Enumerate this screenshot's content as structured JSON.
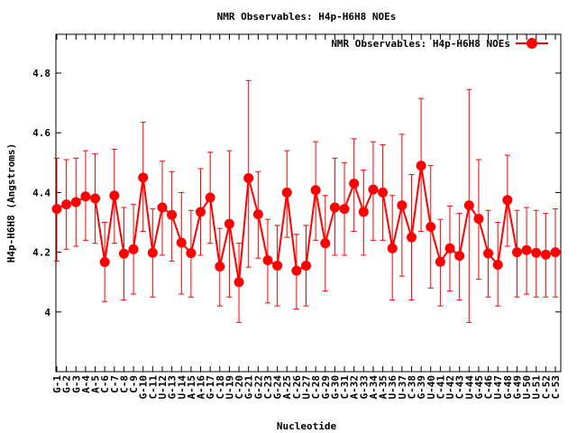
{
  "chart_data": {
    "type": "line",
    "title": "NMR Observables: H4p-H6H8 NOEs",
    "xlabel": "Nucleotide",
    "ylabel": "H4p-H6H8 (Angstroms)",
    "ylim": [
      3.8,
      4.93
    ],
    "yticks": [
      "4",
      "4.2",
      "4.4",
      "4.6",
      "4.8"
    ],
    "grid": false,
    "legend_position": "top-right",
    "series": [
      {
        "name": "NMR Observables: H4p-H6H8 NOEs",
        "color": "#ff0000",
        "marker": "circle",
        "values": [
          4.345,
          4.36,
          4.368,
          4.387,
          4.38,
          4.167,
          4.39,
          4.195,
          4.21,
          4.45,
          4.198,
          4.35,
          4.325,
          4.232,
          4.197,
          4.335,
          4.383,
          4.152,
          4.295,
          4.1,
          4.448,
          4.327,
          4.173,
          4.155,
          4.4,
          4.138,
          4.155,
          4.408,
          4.23,
          4.35,
          4.345,
          4.43,
          4.335,
          4.41,
          4.4,
          4.213,
          4.357,
          4.25,
          4.49,
          4.285,
          4.168,
          4.213,
          4.188,
          4.357,
          4.312,
          4.196,
          4.158,
          4.375,
          4.2,
          4.207,
          4.198,
          4.192,
          4.2
        ],
        "error_low": [
          4.17,
          4.21,
          4.22,
          4.24,
          4.23,
          4.035,
          4.23,
          4.04,
          4.06,
          4.27,
          4.05,
          4.19,
          4.17,
          4.06,
          4.05,
          4.19,
          4.23,
          4.02,
          4.05,
          3.965,
          4.15,
          4.18,
          4.03,
          4.02,
          4.25,
          4.01,
          4.02,
          4.24,
          4.07,
          4.19,
          4.19,
          4.27,
          4.19,
          4.24,
          4.24,
          4.04,
          4.12,
          4.04,
          4.27,
          4.08,
          4.02,
          4.07,
          4.04,
          3.965,
          4.11,
          4.05,
          4.02,
          4.22,
          4.05,
          4.06,
          4.05,
          4.05,
          4.05
        ],
        "error_high": [
          4.515,
          4.51,
          4.515,
          4.54,
          4.53,
          4.3,
          4.545,
          4.35,
          4.36,
          4.635,
          4.345,
          4.505,
          4.47,
          4.4,
          4.34,
          4.48,
          4.535,
          4.28,
          4.54,
          4.23,
          4.775,
          4.47,
          4.31,
          4.29,
          4.54,
          4.26,
          4.29,
          4.57,
          4.39,
          4.515,
          4.5,
          4.58,
          4.475,
          4.57,
          4.56,
          4.39,
          4.595,
          4.46,
          4.715,
          4.49,
          4.31,
          4.355,
          4.33,
          4.745,
          4.51,
          4.34,
          4.3,
          4.525,
          4.34,
          4.35,
          4.34,
          4.33,
          4.345
        ]
      }
    ],
    "categories": [
      "G-1",
      "G-2",
      "G-3",
      "A-4",
      "A-5",
      "C-6",
      "C-7",
      "C-8",
      "C-9",
      "G-10",
      "C-11",
      "U-12",
      "G-13",
      "U-14",
      "A-15",
      "A-16",
      "G-17",
      "C-18",
      "U-19",
      "C-20",
      "G-21",
      "G-22",
      "C-23",
      "G-24",
      "A-25",
      "C-26",
      "U-27",
      "C-28",
      "G-29",
      "G-30",
      "C-31",
      "A-32",
      "G-33",
      "A-34",
      "A-35",
      "U-36",
      "U-37",
      "C-38",
      "G-39",
      "U-40",
      "C-41",
      "U-42",
      "C-43",
      "U-44",
      "G-45",
      "C-46",
      "U-47",
      "G-48",
      "G-49",
      "U-50",
      "U-51",
      "C-52",
      "C-53"
    ]
  }
}
